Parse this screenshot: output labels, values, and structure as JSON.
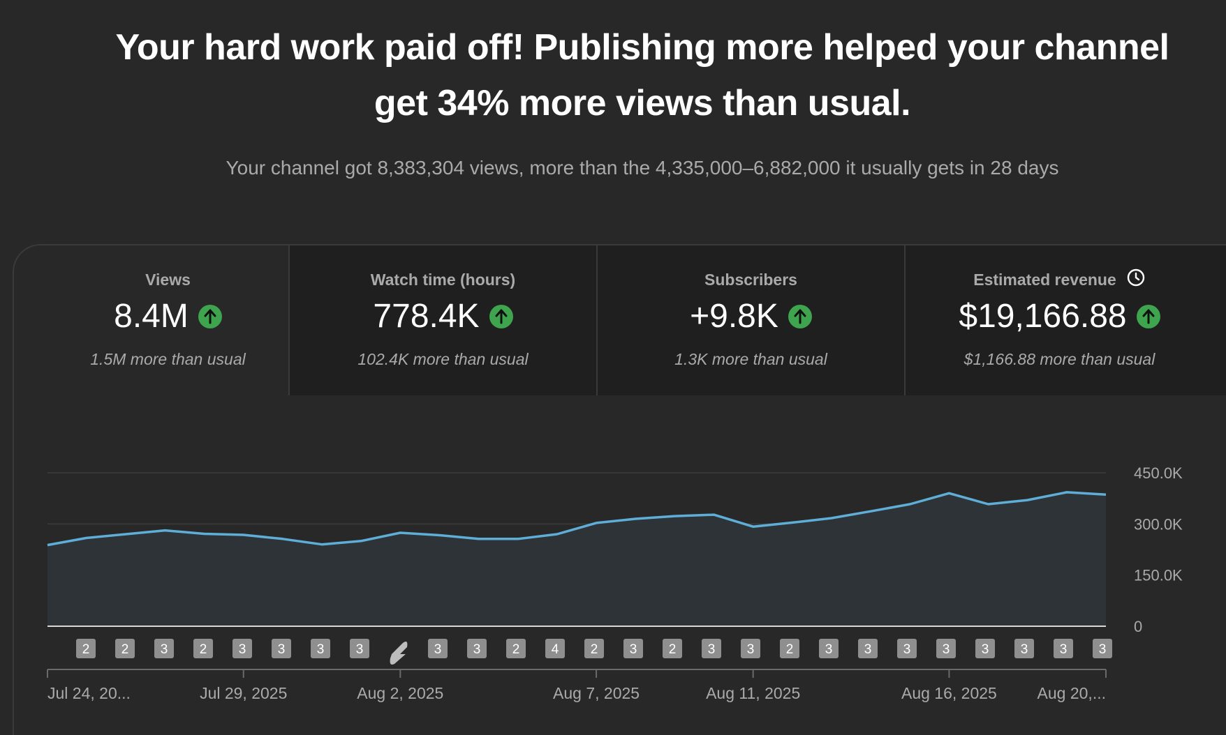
{
  "headline": {
    "line1": "Your hard work paid off! Publishing more helped your channel",
    "line2": "get 34% more views than usual."
  },
  "subheadline": "Your channel got 8,383,304 views, more than the 4,335,000–6,882,000 it usually gets in 28 days",
  "metrics": [
    {
      "label": "Views",
      "value": "8.4M",
      "note": "1.5M more than usual",
      "trend": "up",
      "icon": "arrow-up-icon"
    },
    {
      "label": "Watch time (hours)",
      "value": "778.4K",
      "note": "102.4K more than usual",
      "trend": "up",
      "icon": "arrow-up-icon"
    },
    {
      "label": "Subscribers",
      "value": "+9.8K",
      "note": "1.3K more than usual",
      "trend": "up",
      "icon": "arrow-up-icon"
    },
    {
      "label": "Estimated revenue",
      "value": "$19,166.88",
      "note": "$1,166.88 more than usual",
      "trend": "up",
      "icon": "arrow-up-icon",
      "label_icon": "clock-icon"
    }
  ],
  "colors": {
    "background": "#282828",
    "line": "#5eaed8",
    "area": "#2e3338",
    "up": "#3ea44e",
    "badge": "#8f8f8f",
    "grid": "#3c3c3c"
  },
  "chart_data": {
    "type": "area",
    "x": [
      "Jul 24, 2025",
      "Jul 25, 2025",
      "Jul 26, 2025",
      "Jul 27, 2025",
      "Jul 28, 2025",
      "Jul 29, 2025",
      "Jul 30, 2025",
      "Jul 31, 2025",
      "Aug 1, 2025",
      "Aug 2, 2025",
      "Aug 3, 2025",
      "Aug 4, 2025",
      "Aug 5, 2025",
      "Aug 6, 2025",
      "Aug 7, 2025",
      "Aug 8, 2025",
      "Aug 9, 2025",
      "Aug 10, 2025",
      "Aug 11, 2025",
      "Aug 12, 2025",
      "Aug 13, 2025",
      "Aug 14, 2025",
      "Aug 15, 2025",
      "Aug 16, 2025",
      "Aug 17, 2025",
      "Aug 18, 2025",
      "Aug 19, 2025",
      "Aug 20, 2025"
    ],
    "series": [
      {
        "values": [
          238000,
          259000,
          270000,
          281000,
          271000,
          268000,
          256000,
          240000,
          250000,
          274000,
          267000,
          256000,
          256000,
          270000,
          303000,
          315000,
          323000,
          327000,
          292000,
          304000,
          317000,
          337000,
          358000,
          390000,
          358000,
          370000,
          393000,
          386000
        ]
      }
    ],
    "uploads_per_day": [
      "2",
      "2",
      "3",
      "2",
      "3",
      "3",
      "3",
      "3",
      "shorts",
      "3",
      "3",
      "2",
      "4",
      "2",
      "3",
      "2",
      "3",
      "3",
      "2",
      "3",
      "3",
      "3",
      "3",
      "3",
      "3",
      "3",
      "3",
      ""
    ],
    "x_tick_labels": [
      "Jul 24, 20...",
      "Jul 29, 2025",
      "Aug 2, 2025",
      "Aug 7, 2025",
      "Aug 11, 2025",
      "Aug 16, 2025",
      "Aug 20,..."
    ],
    "x_tick_indices": [
      0,
      5,
      9,
      14,
      18,
      23,
      27
    ],
    "y_ticks": [
      0,
      150000,
      300000,
      450000
    ],
    "y_tick_labels": [
      "0",
      "150.0K",
      "300.0K",
      "450.0K"
    ],
    "ylim": [
      0,
      450000
    ],
    "grid": true
  }
}
